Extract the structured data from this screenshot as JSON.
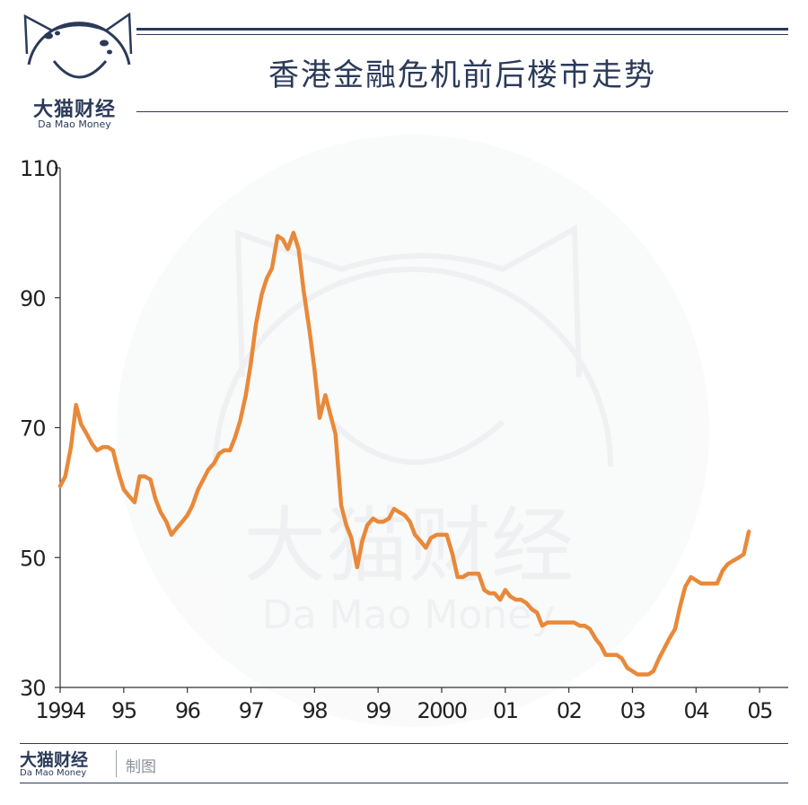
{
  "brand": {
    "name_cn": "大猫财经",
    "name_en": "Da Mao Money",
    "watermark_cn": "大猫财经",
    "watermark_en": "Da Mao Money"
  },
  "header": {
    "title": "香港金融危机前后楼市走势"
  },
  "footer": {
    "brand_cn": "大猫财经",
    "brand_en": "Da Mao Money",
    "note": "制图"
  },
  "colors": {
    "line": "#e8893a",
    "navy": "#2b3a59",
    "axis": "#333333"
  },
  "chart_data": {
    "type": "line",
    "title": "香港金融危机前后楼市走势",
    "xlabel": "",
    "ylabel": "",
    "xlim": [
      1994,
      2005.45
    ],
    "ylim": [
      30,
      110
    ],
    "yticks": [
      30,
      50,
      70,
      90,
      110
    ],
    "xticks": [
      {
        "x": 1994,
        "label": "1994"
      },
      {
        "x": 1995,
        "label": "95"
      },
      {
        "x": 1996,
        "label": "96"
      },
      {
        "x": 1997,
        "label": "97"
      },
      {
        "x": 1998,
        "label": "98"
      },
      {
        "x": 1999,
        "label": "99"
      },
      {
        "x": 2000,
        "label": "2000"
      },
      {
        "x": 2001,
        "label": "01"
      },
      {
        "x": 2002,
        "label": "02"
      },
      {
        "x": 2003,
        "label": "03"
      },
      {
        "x": 2004,
        "label": "04"
      },
      {
        "x": 2005,
        "label": "05"
      }
    ],
    "grid": false,
    "series": [
      {
        "points": [
          [
            1994.0,
            61.0
          ],
          [
            1994.08,
            62.5
          ],
          [
            1994.17,
            67.0
          ],
          [
            1994.25,
            73.5
          ],
          [
            1994.33,
            70.5
          ],
          [
            1994.42,
            69.0
          ],
          [
            1994.5,
            67.5
          ],
          [
            1994.58,
            66.5
          ],
          [
            1994.67,
            67.0
          ],
          [
            1994.75,
            67.0
          ],
          [
            1994.83,
            66.5
          ],
          [
            1994.92,
            63.0
          ],
          [
            1995.0,
            60.5
          ],
          [
            1995.08,
            59.5
          ],
          [
            1995.17,
            58.5
          ],
          [
            1995.25,
            62.5
          ],
          [
            1995.33,
            62.5
          ],
          [
            1995.42,
            62.0
          ],
          [
            1995.5,
            59.0
          ],
          [
            1995.58,
            57.0
          ],
          [
            1995.67,
            55.5
          ],
          [
            1995.75,
            53.5
          ],
          [
            1995.83,
            54.5
          ],
          [
            1995.92,
            55.5
          ],
          [
            1996.0,
            56.5
          ],
          [
            1996.08,
            58.0
          ],
          [
            1996.17,
            60.5
          ],
          [
            1996.25,
            62.0
          ],
          [
            1996.33,
            63.5
          ],
          [
            1996.42,
            64.5
          ],
          [
            1996.5,
            66.0
          ],
          [
            1996.58,
            66.5
          ],
          [
            1996.67,
            66.5
          ],
          [
            1996.75,
            68.5
          ],
          [
            1996.83,
            71.0
          ],
          [
            1996.92,
            75.0
          ],
          [
            1997.0,
            80.0
          ],
          [
            1997.08,
            86.0
          ],
          [
            1997.17,
            90.5
          ],
          [
            1997.25,
            93.0
          ],
          [
            1997.33,
            94.5
          ],
          [
            1997.42,
            99.5
          ],
          [
            1997.5,
            99.0
          ],
          [
            1997.58,
            97.5
          ],
          [
            1997.67,
            100.0
          ],
          [
            1997.75,
            97.5
          ],
          [
            1997.83,
            91.0
          ],
          [
            1997.92,
            85.0
          ],
          [
            1998.0,
            79.0
          ],
          [
            1998.08,
            71.5
          ],
          [
            1998.17,
            75.0
          ],
          [
            1998.25,
            72.0
          ],
          [
            1998.33,
            69.0
          ],
          [
            1998.42,
            58.0
          ],
          [
            1998.5,
            55.0
          ],
          [
            1998.58,
            53.0
          ],
          [
            1998.67,
            48.5
          ],
          [
            1998.75,
            52.5
          ],
          [
            1998.83,
            55.0
          ],
          [
            1998.92,
            56.0
          ],
          [
            1999.0,
            55.5
          ],
          [
            1999.08,
            55.5
          ],
          [
            1999.17,
            56.0
          ],
          [
            1999.25,
            57.5
          ],
          [
            1999.33,
            57.0
          ],
          [
            1999.42,
            56.5
          ],
          [
            1999.5,
            55.5
          ],
          [
            1999.58,
            53.5
          ],
          [
            1999.67,
            52.5
          ],
          [
            1999.75,
            51.5
          ],
          [
            1999.83,
            53.0
          ],
          [
            1999.92,
            53.5
          ],
          [
            2000.0,
            53.5
          ],
          [
            2000.08,
            53.5
          ],
          [
            2000.17,
            50.5
          ],
          [
            2000.25,
            47.0
          ],
          [
            2000.33,
            47.0
          ],
          [
            2000.42,
            47.5
          ],
          [
            2000.5,
            47.5
          ],
          [
            2000.58,
            47.5
          ],
          [
            2000.67,
            45.0
          ],
          [
            2000.75,
            44.5
          ],
          [
            2000.83,
            44.5
          ],
          [
            2000.92,
            43.5
          ],
          [
            2001.0,
            45.0
          ],
          [
            2001.08,
            44.0
          ],
          [
            2001.17,
            43.5
          ],
          [
            2001.25,
            43.5
          ],
          [
            2001.33,
            43.0
          ],
          [
            2001.42,
            42.0
          ],
          [
            2001.5,
            41.5
          ],
          [
            2001.58,
            39.5
          ],
          [
            2001.67,
            40.0
          ],
          [
            2001.75,
            40.0
          ],
          [
            2001.83,
            40.0
          ],
          [
            2001.92,
            40.0
          ],
          [
            2002.0,
            40.0
          ],
          [
            2002.08,
            40.0
          ],
          [
            2002.17,
            39.5
          ],
          [
            2002.25,
            39.5
          ],
          [
            2002.33,
            39.0
          ],
          [
            2002.42,
            37.5
          ],
          [
            2002.5,
            36.5
          ],
          [
            2002.58,
            35.0
          ],
          [
            2002.67,
            35.0
          ],
          [
            2002.75,
            35.0
          ],
          [
            2002.83,
            34.5
          ],
          [
            2002.92,
            33.0
          ],
          [
            2003.0,
            32.5
          ],
          [
            2003.08,
            32.0
          ],
          [
            2003.17,
            32.0
          ],
          [
            2003.25,
            32.0
          ],
          [
            2003.33,
            32.5
          ],
          [
            2003.42,
            34.5
          ],
          [
            2003.5,
            36.0
          ],
          [
            2003.58,
            37.5
          ],
          [
            2003.67,
            39.0
          ],
          [
            2003.75,
            42.5
          ],
          [
            2003.83,
            45.5
          ],
          [
            2003.92,
            47.0
          ],
          [
            2004.0,
            46.5
          ],
          [
            2004.08,
            46.0
          ],
          [
            2004.17,
            46.0
          ],
          [
            2004.25,
            46.0
          ],
          [
            2004.33,
            46.0
          ],
          [
            2004.42,
            48.0
          ],
          [
            2004.5,
            49.0
          ],
          [
            2004.58,
            49.5
          ],
          [
            2004.67,
            50.0
          ],
          [
            2004.75,
            50.5
          ],
          [
            2004.83,
            54.0
          ]
        ]
      }
    ]
  }
}
